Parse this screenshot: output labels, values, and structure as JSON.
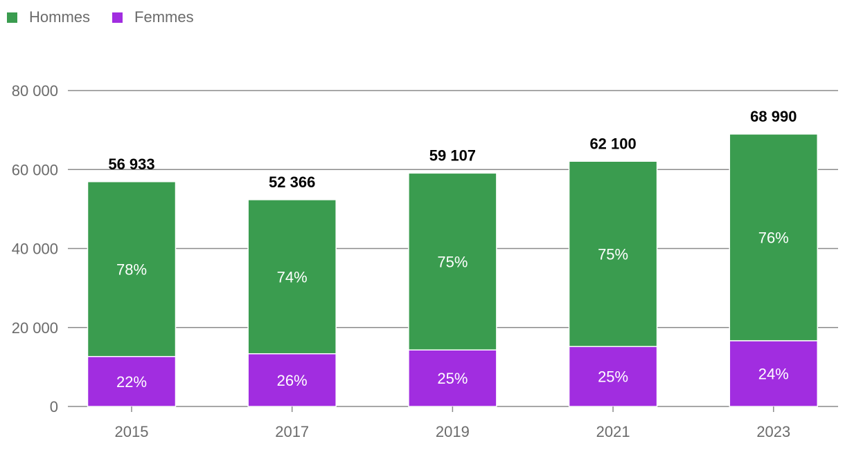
{
  "legend": [
    {
      "label": "Hommes",
      "color": "#3a9c4f"
    },
    {
      "label": "Femmes",
      "color": "#a12de0"
    }
  ],
  "chart_data": {
    "type": "bar",
    "stacked": true,
    "categories": [
      "2015",
      "2017",
      "2019",
      "2021",
      "2023"
    ],
    "series": [
      {
        "name": "Femmes",
        "color": "#a12de0",
        "values": [
          12650,
          13350,
          14310,
          15180,
          16650
        ],
        "labels": [
          "22%",
          "26%",
          "25%",
          "25%",
          "24%"
        ]
      },
      {
        "name": "Hommes",
        "color": "#3a9c4f",
        "values": [
          44283,
          39016,
          44797,
          46920,
          52340
        ],
        "labels": [
          "78%",
          "74%",
          "75%",
          "75%",
          "76%"
        ]
      }
    ],
    "totals": [
      56933,
      52366,
      59107,
      62100,
      68990
    ],
    "total_labels": [
      "56 933",
      "52 366",
      "59 107",
      "62 100",
      "68 990"
    ],
    "ylim": [
      0,
      80000
    ],
    "yticks": [
      0,
      20000,
      40000,
      60000,
      80000
    ],
    "ytick_labels": [
      "0",
      "20 000",
      "40 000",
      "60 000",
      "80 000"
    ],
    "title": "",
    "xlabel": "",
    "ylabel": ""
  }
}
